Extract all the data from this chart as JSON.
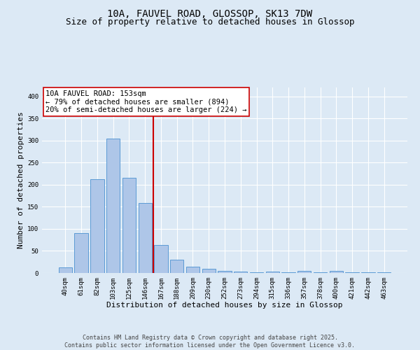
{
  "title1": "10A, FAUVEL ROAD, GLOSSOP, SK13 7DW",
  "title2": "Size of property relative to detached houses in Glossop",
  "xlabel": "Distribution of detached houses by size in Glossop",
  "ylabel": "Number of detached properties",
  "categories": [
    "40sqm",
    "61sqm",
    "82sqm",
    "103sqm",
    "125sqm",
    "146sqm",
    "167sqm",
    "188sqm",
    "209sqm",
    "230sqm",
    "252sqm",
    "273sqm",
    "294sqm",
    "315sqm",
    "336sqm",
    "357sqm",
    "378sqm",
    "400sqm",
    "421sqm",
    "442sqm",
    "463sqm"
  ],
  "values": [
    13,
    90,
    212,
    305,
    215,
    158,
    63,
    30,
    15,
    9,
    5,
    3,
    1,
    3,
    1,
    4,
    1,
    4,
    1,
    1,
    2
  ],
  "bar_color": "#aec6e8",
  "bar_edge_color": "#5b9bd5",
  "vline_x": 5.5,
  "vline_color": "#cc0000",
  "annotation_text": "10A FAUVEL ROAD: 153sqm\n← 79% of detached houses are smaller (894)\n20% of semi-detached houses are larger (224) →",
  "annotation_box_color": "#ffffff",
  "annotation_box_edge": "#cc0000",
  "ylim": [
    0,
    420
  ],
  "yticks": [
    0,
    50,
    100,
    150,
    200,
    250,
    300,
    350,
    400
  ],
  "background_color": "#dce9f5",
  "plot_bg_color": "#dce9f5",
  "footer1": "Contains HM Land Registry data © Crown copyright and database right 2025.",
  "footer2": "Contains public sector information licensed under the Open Government Licence v3.0.",
  "title1_fontsize": 10,
  "title2_fontsize": 9,
  "xlabel_fontsize": 8,
  "ylabel_fontsize": 8,
  "tick_fontsize": 6.5,
  "annotation_fontsize": 7.5,
  "footer_fontsize": 6
}
